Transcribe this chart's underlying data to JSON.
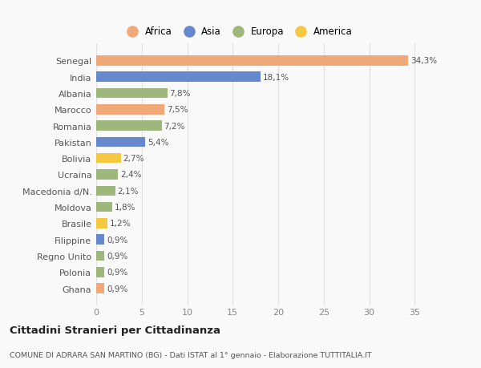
{
  "categories": [
    "Ghana",
    "Polonia",
    "Regno Unito",
    "Filippine",
    "Brasile",
    "Moldova",
    "Macedonia d/N.",
    "Ucraina",
    "Bolivia",
    "Pakistan",
    "Romania",
    "Marocco",
    "Albania",
    "India",
    "Senegal"
  ],
  "values": [
    0.9,
    0.9,
    0.9,
    0.9,
    1.2,
    1.8,
    2.1,
    2.4,
    2.7,
    5.4,
    7.2,
    7.5,
    7.8,
    18.1,
    34.3
  ],
  "labels": [
    "0,9%",
    "0,9%",
    "0,9%",
    "0,9%",
    "1,2%",
    "1,8%",
    "2,1%",
    "2,4%",
    "2,7%",
    "5,4%",
    "7,2%",
    "7,5%",
    "7,8%",
    "18,1%",
    "34,3%"
  ],
  "colors": [
    "#f0a878",
    "#9db87a",
    "#9db87a",
    "#6688cc",
    "#f5c842",
    "#9db87a",
    "#9db87a",
    "#9db87a",
    "#f5c842",
    "#6688cc",
    "#9db87a",
    "#f0a878",
    "#9db87a",
    "#6688cc",
    "#f0a878"
  ],
  "legend_labels": [
    "Africa",
    "Asia",
    "Europa",
    "America"
  ],
  "legend_colors": [
    "#f0a878",
    "#6688cc",
    "#9db87a",
    "#f5c842"
  ],
  "title1": "Cittadini Stranieri per Cittadinanza",
  "title2": "COMUNE DI ADRARA SAN MARTINO (BG) - Dati ISTAT al 1° gennaio - Elaborazione TUTTITALIA.IT",
  "xlim": [
    0,
    37
  ],
  "xticks": [
    0,
    5,
    10,
    15,
    20,
    25,
    30,
    35
  ],
  "background_color": "#f9f9f9",
  "bar_height": 0.62,
  "grid_color": "#e0e0e0",
  "label_fontsize": 7.5,
  "ytick_fontsize": 8,
  "xtick_fontsize": 8
}
